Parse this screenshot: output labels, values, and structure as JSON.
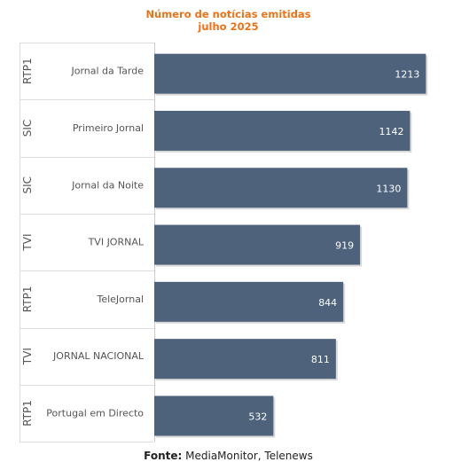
{
  "chart_data": {
    "type": "bar",
    "orientation": "horizontal",
    "title": "Número de notícias emitidas",
    "subtitle": "julho 2025",
    "categories": [
      {
        "group": "RTP1",
        "label": "Jornal da Tarde"
      },
      {
        "group": "SIC",
        "label": "Primeiro Jornal"
      },
      {
        "group": "SIC",
        "label": "Jornal da Noite"
      },
      {
        "group": "TVI",
        "label": "TVI JORNAL"
      },
      {
        "group": "RTP1",
        "label": "TeleJornal"
      },
      {
        "group": "TVI",
        "label": "JORNAL NACIONAL"
      },
      {
        "group": "RTP1",
        "label": "Portugal em Directo"
      }
    ],
    "values": [
      1213,
      1142,
      1130,
      919,
      844,
      811,
      532
    ],
    "xlim": [
      0,
      1350
    ],
    "grid": false,
    "data_labels": true
  },
  "source": {
    "label": "Fonte:",
    "text": " MediaMonitor, Telenews"
  },
  "colors": {
    "title": "#e8731a",
    "bar": "#4e627c",
    "bar_label": "#ffffff",
    "axis_text": "#555555",
    "separator": "#dddddd"
  }
}
